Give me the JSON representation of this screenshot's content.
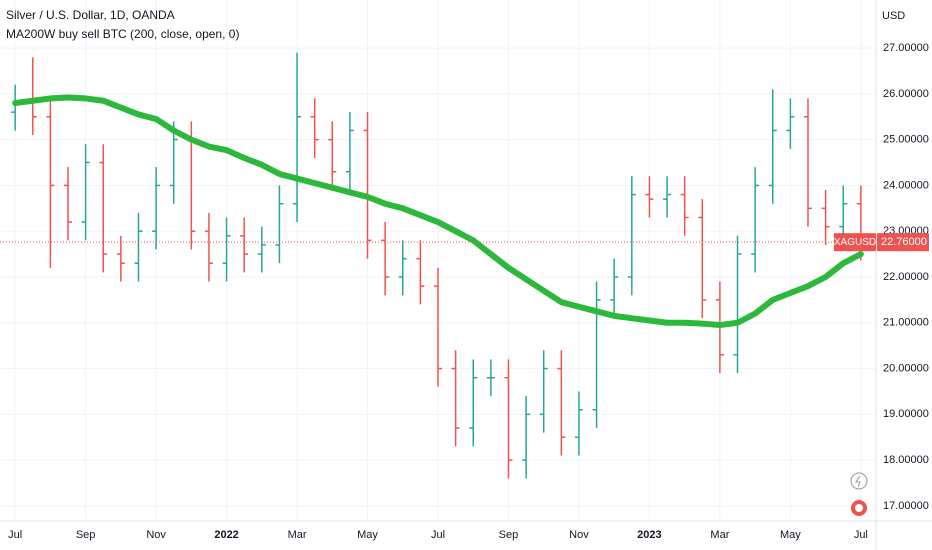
{
  "chart_data": {
    "type": "ohlc",
    "title": "Silver / U.S. Dollar, 1D, OANDA",
    "currency": "USD",
    "x": [
      0,
      0.5,
      1,
      1.5,
      2,
      2.5,
      3,
      3.5,
      4,
      4.5,
      5,
      5.5,
      6,
      6.5,
      7,
      7.5,
      8,
      8.5,
      9,
      9.5,
      10,
      10.5,
      11,
      11.5,
      12,
      12.5,
      13,
      13.5,
      14,
      14.5,
      15,
      15.5,
      16,
      16.5,
      17,
      17.5,
      18,
      18.5,
      19,
      19.5,
      20,
      20.5,
      21,
      21.5,
      22,
      22.5,
      23,
      23.5,
      24
    ],
    "open": [
      25.6,
      25.8,
      25.5,
      24.0,
      23.2,
      24.5,
      22.5,
      22.3,
      23.0,
      24.0,
      25.0,
      23.0,
      22.3,
      22.9,
      22.5,
      22.7,
      23.6,
      25.5,
      25.0,
      24.3,
      25.2,
      22.8,
      22.0,
      22.4,
      21.8,
      20.0,
      18.7,
      19.8,
      19.8,
      18.0,
      19.0,
      20.0,
      18.5,
      19.1,
      21.5,
      22.0,
      23.8,
      23.7,
      23.8,
      23.3,
      21.5,
      20.3,
      22.5,
      24.0,
      25.2,
      25.5,
      23.5,
      23.1,
      23.6
    ],
    "high": [
      26.2,
      26.8,
      25.9,
      24.4,
      24.9,
      24.9,
      22.9,
      23.4,
      24.4,
      25.4,
      25.4,
      23.4,
      23.3,
      23.3,
      23.1,
      24.0,
      26.9,
      25.9,
      25.4,
      25.6,
      25.6,
      23.2,
      22.8,
      22.8,
      22.2,
      20.4,
      20.2,
      20.2,
      20.2,
      19.4,
      20.4,
      20.4,
      19.5,
      21.9,
      22.4,
      24.2,
      24.2,
      24.2,
      24.2,
      23.7,
      21.9,
      22.9,
      24.4,
      26.1,
      25.9,
      25.9,
      23.9,
      24.0,
      24.0
    ],
    "low": [
      25.2,
      25.1,
      22.2,
      22.8,
      22.8,
      22.1,
      21.9,
      21.9,
      22.6,
      23.6,
      22.6,
      21.9,
      21.9,
      22.1,
      22.1,
      22.3,
      23.2,
      24.6,
      23.9,
      23.9,
      22.4,
      21.6,
      21.6,
      21.4,
      19.6,
      18.3,
      18.3,
      19.4,
      17.6,
      17.6,
      18.6,
      18.1,
      18.1,
      18.7,
      21.1,
      21.6,
      23.3,
      23.3,
      22.9,
      21.1,
      19.9,
      19.9,
      22.1,
      23.6,
      24.8,
      23.1,
      22.7,
      22.7,
      22.36
    ],
    "close": [
      25.8,
      25.5,
      24.0,
      23.2,
      24.5,
      22.5,
      22.3,
      23.0,
      24.0,
      25.0,
      23.0,
      22.3,
      22.9,
      22.5,
      22.7,
      23.6,
      25.5,
      25.0,
      24.3,
      25.2,
      22.8,
      22.0,
      22.4,
      21.8,
      20.0,
      18.7,
      19.8,
      19.8,
      18.0,
      19.0,
      20.0,
      18.5,
      19.1,
      21.5,
      22.0,
      23.8,
      23.7,
      23.8,
      23.3,
      21.5,
      20.3,
      22.5,
      24.0,
      25.2,
      25.5,
      23.5,
      23.1,
      23.6,
      22.76
    ],
    "up_color": "#26a69a",
    "down_color": "#ef5350",
    "series": [
      {
        "name": "MA200W buy sell BTC (200, close, open, 0)",
        "color": "#2cb83a",
        "values": [
          25.8,
          25.85,
          25.9,
          25.92,
          25.9,
          25.85,
          25.7,
          25.55,
          25.45,
          25.2,
          25.0,
          24.85,
          24.77,
          24.6,
          24.45,
          24.25,
          24.15,
          24.05,
          23.95,
          23.85,
          23.75,
          23.6,
          23.5,
          23.35,
          23.2,
          23.0,
          22.8,
          22.5,
          22.2,
          21.95,
          21.7,
          21.45,
          21.35,
          21.25,
          21.15,
          21.1,
          21.05,
          21.0,
          21.0,
          20.98,
          20.95,
          21.0,
          21.2,
          21.5,
          21.65,
          21.8,
          22.0,
          22.3,
          22.5
        ]
      }
    ],
    "last_price": {
      "value": 22.76,
      "label": "22.76000"
    },
    "symbol": "XAGUSD",
    "xlim": [
      -0.43,
      24.43
    ],
    "xticks": [
      {
        "value": 0,
        "label": "Jul"
      },
      {
        "value": 2,
        "label": "Sep"
      },
      {
        "value": 4,
        "label": "Nov"
      },
      {
        "value": 6,
        "label": "2022"
      },
      {
        "value": 8,
        "label": "Mar"
      },
      {
        "value": 10,
        "label": "May"
      },
      {
        "value": 12,
        "label": "Jul"
      },
      {
        "value": 14,
        "label": "Sep"
      },
      {
        "value": 16,
        "label": "Nov"
      },
      {
        "value": 18,
        "label": "2023"
      },
      {
        "value": 20,
        "label": "Mar"
      },
      {
        "value": 22,
        "label": "May"
      },
      {
        "value": 24,
        "label": "Jul"
      }
    ],
    "ylim": [
      16.67,
      28.05
    ],
    "yticks": [
      {
        "value": 17,
        "label": "17.00000"
      },
      {
        "value": 18,
        "label": "18.00000"
      },
      {
        "value": 19,
        "label": "19.00000"
      },
      {
        "value": 20,
        "label": "20.00000"
      },
      {
        "value": 21,
        "label": "21.00000"
      },
      {
        "value": 22,
        "label": "22.00000"
      },
      {
        "value": 23,
        "label": "23.00000"
      },
      {
        "value": 24,
        "label": "24.00000"
      },
      {
        "value": 25,
        "label": "25.00000"
      },
      {
        "value": 26,
        "label": "26.00000"
      },
      {
        "value": 27,
        "label": "27.00000"
      }
    ]
  }
}
